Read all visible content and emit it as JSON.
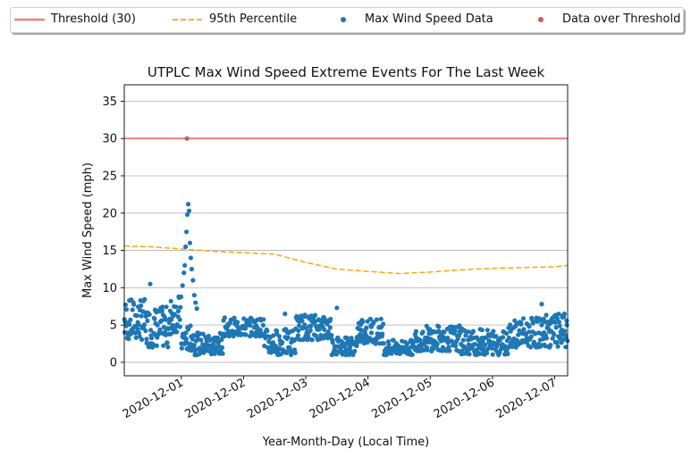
{
  "chart_data": {
    "type": "scatter",
    "title": "UTPLC Max Wind Speed Extreme Events For The Last Week",
    "xlabel": "Year-Month-Day (Local Time)",
    "ylabel": "Max Wind Speed (mph)",
    "xlim": [
      "2020-11-30T02:00",
      "2020-12-07T05:00"
    ],
    "ylim": [
      -1.8,
      37.2
    ],
    "yticks": [
      0,
      5,
      10,
      15,
      20,
      25,
      30,
      35
    ],
    "xticks": [
      "2020-12-01",
      "2020-12-02",
      "2020-12-03",
      "2020-12-04",
      "2020-12-05",
      "2020-12-06",
      "2020-12-07"
    ],
    "grid": "horizontal",
    "legend_position": "top",
    "threshold": {
      "name": "Threshold (30)",
      "value": 30,
      "color": "#f08080"
    },
    "percentile_95": {
      "name": "95th Percentile",
      "color": "#ffa500",
      "x": [
        "2020-11-30T02:00",
        "2020-11-30T12:00",
        "2020-12-01T00:00",
        "2020-12-01T12:00",
        "2020-12-02T00:00",
        "2020-12-02T12:00",
        "2020-12-03T00:00",
        "2020-12-03T12:00",
        "2020-12-04T00:00",
        "2020-12-04T12:00",
        "2020-12-05T00:00",
        "2020-12-05T12:00",
        "2020-12-06T00:00",
        "2020-12-06T12:00",
        "2020-12-07T00:00",
        "2020-12-07T05:00"
      ],
      "y": [
        15.6,
        15.5,
        15.2,
        14.9,
        14.7,
        14.5,
        13.4,
        12.5,
        12.2,
        11.9,
        12.1,
        12.4,
        12.6,
        12.7,
        12.8,
        13.0
      ]
    },
    "series": [
      {
        "name": "Max Wind Speed Data",
        "color": "#1f77b4",
        "segments": [
          {
            "start": "2020-11-30T02:00",
            "end": "2020-11-30T10:00",
            "low": 3.0,
            "high": 8.5
          },
          {
            "start": "2020-11-30T10:00",
            "end": "2020-11-30T20:00",
            "low": 2.0,
            "high": 7.5
          },
          {
            "start": "2020-11-30T20:00",
            "end": "2020-12-01T00:00",
            "low": 4.0,
            "high": 9.0
          },
          {
            "start": "2020-12-01T00:00",
            "end": "2020-12-01T05:00",
            "low": 1.5,
            "high": 5.0
          },
          {
            "start": "2020-12-01T05:00",
            "end": "2020-12-01T16:00",
            "low": 1.0,
            "high": 4.0
          },
          {
            "start": "2020-12-01T16:00",
            "end": "2020-12-02T08:00",
            "low": 3.5,
            "high": 6.0
          },
          {
            "start": "2020-12-02T08:00",
            "end": "2020-12-02T20:00",
            "low": 1.0,
            "high": 4.5
          },
          {
            "start": "2020-12-02T20:00",
            "end": "2020-12-03T10:00",
            "low": 3.0,
            "high": 6.5
          },
          {
            "start": "2020-12-03T10:00",
            "end": "2020-12-03T20:00",
            "low": 1.0,
            "high": 3.5
          },
          {
            "start": "2020-12-03T20:00",
            "end": "2020-12-04T06:00",
            "low": 2.5,
            "high": 6.0
          },
          {
            "start": "2020-12-04T06:00",
            "end": "2020-12-04T18:00",
            "low": 1.0,
            "high": 3.0
          },
          {
            "start": "2020-12-04T18:00",
            "end": "2020-12-05T12:00",
            "low": 1.5,
            "high": 5.0
          },
          {
            "start": "2020-12-05T12:00",
            "end": "2020-12-06T06:00",
            "low": 1.0,
            "high": 4.5
          },
          {
            "start": "2020-12-06T06:00",
            "end": "2020-12-06T20:00",
            "low": 2.0,
            "high": 6.0
          },
          {
            "start": "2020-12-06T20:00",
            "end": "2020-12-07T05:00",
            "low": 2.0,
            "high": 6.5
          }
        ],
        "points": [
          {
            "x": "2020-11-30T12:00",
            "y": 10.5
          },
          {
            "x": "2020-11-30T20:00",
            "y": 8.2
          },
          {
            "x": "2020-11-30T23:00",
            "y": 8.8
          },
          {
            "x": "2020-12-01T00:30",
            "y": 10.3
          },
          {
            "x": "2020-12-01T01:00",
            "y": 12.0
          },
          {
            "x": "2020-12-01T01:20",
            "y": 13.0
          },
          {
            "x": "2020-12-01T01:40",
            "y": 15.5
          },
          {
            "x": "2020-12-01T02:00",
            "y": 17.5
          },
          {
            "x": "2020-12-01T02:20",
            "y": 19.8
          },
          {
            "x": "2020-12-01T02:40",
            "y": 21.2
          },
          {
            "x": "2020-12-01T03:00",
            "y": 20.3
          },
          {
            "x": "2020-12-01T03:20",
            "y": 16.0
          },
          {
            "x": "2020-12-01T03:40",
            "y": 14.0
          },
          {
            "x": "2020-12-01T04:00",
            "y": 12.5
          },
          {
            "x": "2020-12-01T04:30",
            "y": 11.0
          },
          {
            "x": "2020-12-01T05:00",
            "y": 9.0
          },
          {
            "x": "2020-12-01T05:30",
            "y": 8.0
          },
          {
            "x": "2020-12-01T06:00",
            "y": 7.2
          },
          {
            "x": "2020-12-02T16:00",
            "y": 6.5
          },
          {
            "x": "2020-12-03T12:00",
            "y": 7.3
          },
          {
            "x": "2020-12-06T19:00",
            "y": 7.8
          }
        ]
      },
      {
        "name": "Data over Threshold",
        "color": "#cd5c5c",
        "points": [
          {
            "x": "2020-12-01T02:10",
            "y": 30.0
          }
        ]
      }
    ]
  }
}
